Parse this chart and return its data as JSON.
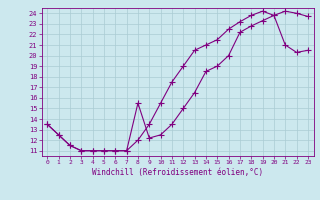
{
  "line1_x": [
    0,
    1,
    2,
    3,
    4,
    5,
    6,
    7,
    8,
    9,
    10,
    11,
    12,
    13,
    14,
    15,
    16,
    17,
    18,
    19,
    20,
    21,
    22,
    23
  ],
  "line1_y": [
    13.5,
    12.5,
    11.5,
    11.0,
    11.0,
    11.0,
    11.0,
    11.0,
    15.5,
    12.2,
    12.5,
    13.5,
    15.0,
    16.5,
    18.5,
    19.0,
    20.0,
    22.2,
    22.8,
    23.3,
    23.8,
    24.2,
    24.0,
    23.7
  ],
  "line2_x": [
    0,
    1,
    2,
    3,
    4,
    5,
    6,
    7,
    8,
    9,
    10,
    11,
    12,
    13,
    14,
    15,
    16,
    17,
    18,
    19,
    20,
    21,
    22,
    23
  ],
  "line2_y": [
    13.5,
    12.5,
    11.5,
    11.0,
    11.0,
    11.0,
    11.0,
    11.0,
    12.0,
    13.5,
    15.5,
    17.5,
    19.0,
    20.5,
    21.0,
    21.5,
    22.5,
    23.2,
    23.8,
    24.2,
    23.8,
    21.0,
    20.3,
    20.5
  ],
  "color": "#800080",
  "bg_color": "#cce8ee",
  "grid_color": "#aaccd4",
  "xlabel": "Windchill (Refroidissement éolien,°C)",
  "yticks": [
    11,
    12,
    13,
    14,
    15,
    16,
    17,
    18,
    19,
    20,
    21,
    22,
    23,
    24
  ],
  "xticks": [
    0,
    1,
    2,
    3,
    4,
    5,
    6,
    7,
    8,
    9,
    10,
    11,
    12,
    13,
    14,
    15,
    16,
    17,
    18,
    19,
    20,
    21,
    22,
    23
  ],
  "xlim": [
    -0.5,
    23.5
  ],
  "ylim": [
    10.5,
    24.5
  ],
  "marker": "+",
  "linewidth": 0.8,
  "markersize": 4,
  "markeredgewidth": 0.8
}
